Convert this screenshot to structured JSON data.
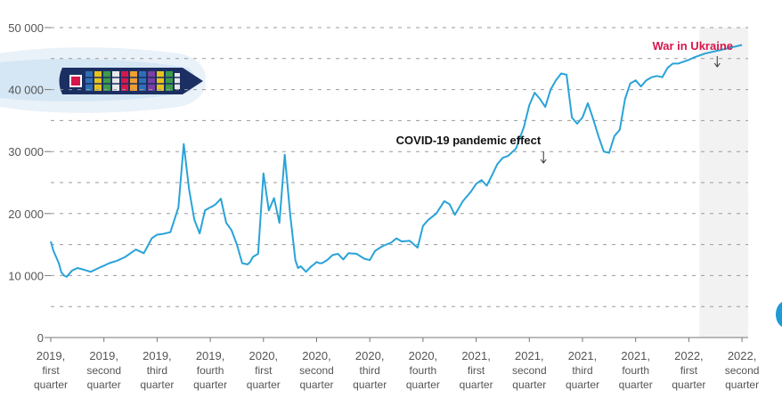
{
  "colors": {
    "line": "#29a3d8",
    "grid": "#9a9a9a",
    "axis": "#777777",
    "shade": "#f2f2f2",
    "covid_text": "#111111",
    "war_text": "#d6174b"
  },
  "icons": [
    "container-ship-icon"
  ],
  "chart_data": {
    "type": "line",
    "title": "",
    "xlabel": "",
    "ylabel": "",
    "ylim": [
      0,
      50000
    ],
    "yticks": [
      0,
      10000,
      20000,
      30000,
      40000,
      50000
    ],
    "ytick_labels": [
      "0",
      "10 000",
      "20 000",
      "30 000",
      "40 000",
      "50 000"
    ],
    "grid": "horizontal dashed",
    "categories": [
      {
        "year": "2019,",
        "l1": "first",
        "l2": "quarter"
      },
      {
        "year": "2019,",
        "l1": "second",
        "l2": "quarter"
      },
      {
        "year": "2019,",
        "l1": "third",
        "l2": "quarter"
      },
      {
        "year": "2019,",
        "l1": "fourth",
        "l2": "quarter"
      },
      {
        "year": "2020,",
        "l1": "first",
        "l2": "quarter"
      },
      {
        "year": "2020,",
        "l1": "second",
        "l2": "quarter"
      },
      {
        "year": "2020,",
        "l1": "third",
        "l2": "quarter"
      },
      {
        "year": "2020,",
        "l1": "fourth",
        "l2": "quarter"
      },
      {
        "year": "2021,",
        "l1": "first",
        "l2": "quarter"
      },
      {
        "year": "2021,",
        "l1": "second",
        "l2": "quarter"
      },
      {
        "year": "2021,",
        "l1": "third",
        "l2": "quarter"
      },
      {
        "year": "2021,",
        "l1": "fourth",
        "l2": "quarter"
      },
      {
        "year": "2022,",
        "l1": "first",
        "l2": "quarter"
      },
      {
        "year": "2022,",
        "l1": "second",
        "l2": "quarter"
      }
    ],
    "shaded_from": 12.2,
    "series": [
      {
        "x": [
          0.0,
          0.05,
          0.1,
          0.15,
          0.2,
          0.25,
          0.3,
          0.4,
          0.5,
          0.6,
          0.75,
          0.9,
          1.0,
          1.1,
          1.25,
          1.4,
          1.5,
          1.6,
          1.75,
          1.9,
          2.0,
          2.1,
          2.25,
          2.4,
          2.5,
          2.6,
          2.7,
          2.8,
          2.9,
          3.0,
          3.03,
          3.1,
          3.2,
          3.3,
          3.4,
          3.5,
          3.6,
          3.7,
          3.75,
          3.8,
          3.9,
          4.0,
          4.1,
          4.2,
          4.3,
          4.4,
          4.5,
          4.6,
          4.65,
          4.7,
          4.8,
          4.9,
          4.95,
          5.0,
          5.05,
          5.1,
          5.2,
          5.3,
          5.4,
          5.5,
          5.6,
          5.75,
          5.9,
          6.0,
          6.1,
          6.25,
          6.4,
          6.5,
          6.6,
          6.75,
          6.9,
          7.0,
          7.1,
          7.25,
          7.4,
          7.5,
          7.6,
          7.75,
          7.9,
          8.0,
          8.1,
          8.2,
          8.3,
          8.4,
          8.5,
          8.6,
          8.75,
          8.9,
          9.0,
          9.1,
          9.2,
          9.3,
          9.4,
          9.5,
          9.6,
          9.7,
          9.8,
          9.9,
          10.0,
          10.1,
          10.2,
          10.3,
          10.4,
          10.5,
          10.6,
          10.7,
          10.8,
          10.9,
          11.0,
          11.1,
          11.2,
          11.3,
          11.4,
          11.5,
          11.6,
          11.7,
          11.8,
          11.9,
          12.0,
          12.1,
          12.2,
          12.3,
          12.4,
          12.5,
          12.6,
          12.7,
          12.8,
          12.9,
          13.0
        ],
        "values": [
          15500,
          14000,
          13000,
          12000,
          10500,
          10000,
          9800,
          10800,
          11200,
          11000,
          10600,
          11200,
          11600,
          12000,
          12400,
          13000,
          13600,
          14200,
          13600,
          16000,
          16600,
          16700,
          17000,
          21000,
          31200,
          24000,
          19000,
          16800,
          20500,
          21000,
          21100,
          21500,
          22400,
          18500,
          17300,
          15000,
          12000,
          11800,
          12200,
          13000,
          13500,
          26500,
          20500,
          22500,
          18500,
          29500,
          20000,
          12500,
          11200,
          11500,
          10600,
          11500,
          11800,
          12200,
          12000,
          12000,
          12500,
          13300,
          13500,
          12600,
          13600,
          13500,
          12700,
          12500,
          14000,
          14800,
          15300,
          16000,
          15500,
          15600,
          14500,
          18000,
          19000,
          20000,
          22000,
          21500,
          19800,
          22000,
          23500,
          24800,
          25400,
          24500,
          26200,
          28000,
          29000,
          29300,
          30500,
          34000,
          37500,
          39500,
          38500,
          37200,
          40000,
          41500,
          42600,
          42400,
          35500,
          34500,
          35500,
          37800,
          35300,
          32500,
          30000,
          29800,
          32500,
          33500,
          38500,
          41000,
          41500,
          40500,
          41500,
          42000,
          42200,
          42000,
          43500,
          44200,
          44200,
          44500,
          44800,
          45200,
          45500,
          45800,
          46000,
          46200,
          46400,
          46600,
          46800,
          47000,
          47200
        ]
      }
    ],
    "annotations": [
      {
        "text": "COVID-19 pandemic effect",
        "x": 9.25
      },
      {
        "text": "War in Ukraine",
        "x": 12.45
      }
    ]
  }
}
